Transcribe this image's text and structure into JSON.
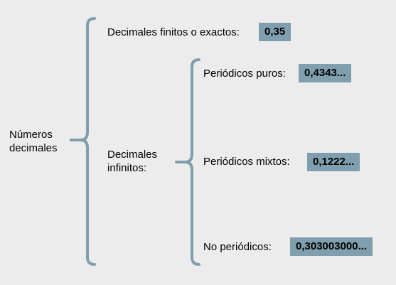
{
  "root": {
    "line1": "Números",
    "line2": "decimales"
  },
  "finitos": {
    "label": "Decimales finitos o exactos:",
    "example": "0,35"
  },
  "infinitos": {
    "line1": "Decimales",
    "line2": "infinitos:"
  },
  "puros": {
    "label": "Periódicos puros:",
    "example": "0,4343..."
  },
  "mixtos": {
    "label": "Periódicos mixtos:",
    "example": "0,1222..."
  },
  "no_periodicos": {
    "label": "No periódicos:",
    "example": "0,303003000..."
  },
  "colors": {
    "bracket": "#7f9fae",
    "box": "#7f9fae",
    "background": "#ececec"
  }
}
